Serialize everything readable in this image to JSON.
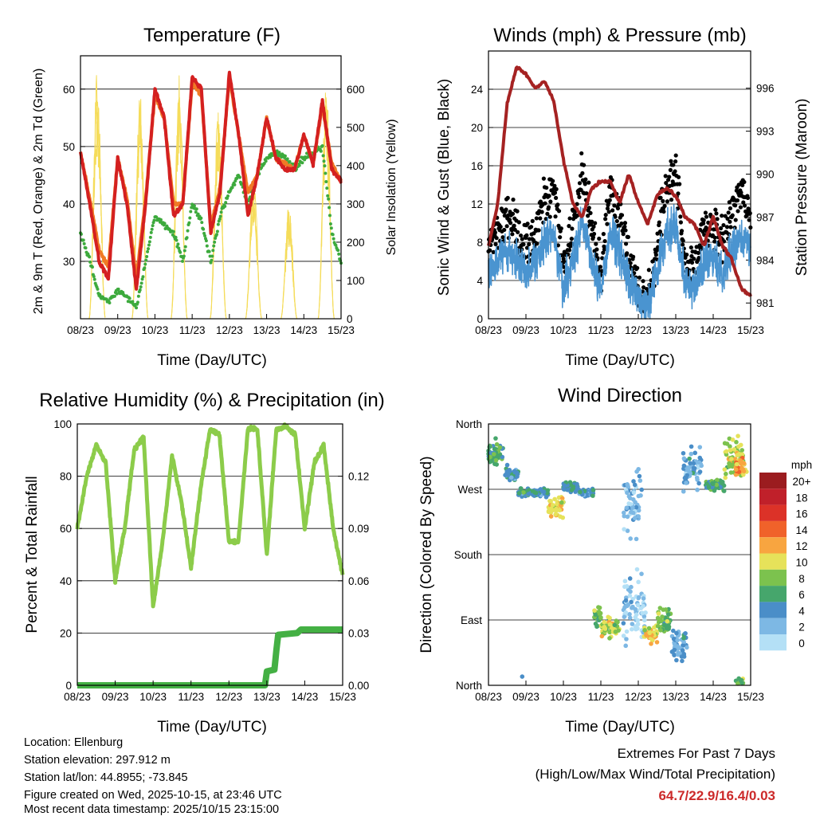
{
  "colors": {
    "red": "#d42020",
    "orange": "#f07a25",
    "green": "#3daa3d",
    "yellow": "#f5dc5a",
    "black": "#000000",
    "blue": "#4a94d0",
    "maroon": "#a52222",
    "rh": "#8ccc4a",
    "precip": "#44b044",
    "extremes": "#cc2a2a"
  },
  "chart_data": [
    {
      "type": "line",
      "title": "Temperature (F)",
      "xlabel": "Time (Day/UTC)",
      "ylabel": "2m & 9m T (Red, Orange) & 2m Td (Green)",
      "ylabel_right": "Solar Insolation (Yellow)",
      "x_ticks": [
        "08/23",
        "09/23",
        "10/23",
        "11/23",
        "12/23",
        "13/23",
        "14/23",
        "15/23"
      ],
      "ylim": [
        20,
        65.8
      ],
      "y_ticks": [
        30,
        40,
        50,
        60
      ],
      "ylim_right": [
        0,
        687
      ],
      "y_ticks_right": [
        0,
        100,
        200,
        300,
        400,
        500,
        600
      ],
      "x_step_days": 0.25,
      "series": [
        {
          "name": "2m T",
          "color": "red",
          "values": [
            49,
            40,
            30,
            27,
            48,
            40,
            25,
            40,
            60,
            55,
            38,
            40,
            62,
            60,
            35,
            42,
            63,
            52,
            38,
            45,
            55,
            48,
            46,
            46,
            52,
            47,
            58,
            46,
            44
          ]
        },
        {
          "name": "9m T",
          "color": "orange",
          "values": [
            49,
            41,
            32,
            29,
            48,
            41,
            27,
            41,
            59,
            55,
            40,
            40,
            61,
            59,
            36,
            43,
            62,
            52,
            42,
            45,
            55,
            48,
            47,
            46,
            52,
            47,
            57,
            47,
            44
          ]
        },
        {
          "name": "2m Td",
          "color": "green",
          "values": [
            35,
            30,
            24,
            23,
            25,
            24,
            22,
            30,
            38,
            36,
            35,
            30,
            40,
            37,
            30,
            38,
            42,
            45,
            40,
            45,
            48,
            49,
            48,
            46,
            48,
            49,
            50,
            35,
            30
          ]
        }
      ],
      "solar_peaks": [
        {
          "day": 0.45,
          "value": 650
        },
        {
          "day": 1.6,
          "value": 600
        },
        {
          "day": 2.65,
          "value": 640
        },
        {
          "day": 3.7,
          "value": 560
        },
        {
          "day": 4.65,
          "value": 380
        },
        {
          "day": 5.6,
          "value": 300
        },
        {
          "day": 6.6,
          "value": 620
        }
      ]
    },
    {
      "type": "scatter",
      "title": "Winds (mph) & Pressure (mb)",
      "xlabel": "Time (Day/UTC)",
      "ylabel": "Sonic Wind & Gust (Blue, Black)",
      "ylabel_right": "Station Pressure (Maroon)",
      "x_ticks": [
        "08/23",
        "09/23",
        "10/23",
        "11/23",
        "12/23",
        "13/23",
        "14/23",
        "15/23"
      ],
      "ylim": [
        0,
        28
      ],
      "y_ticks": [
        0,
        4,
        8,
        12,
        16,
        20,
        24
      ],
      "ylim_right": [
        979.9,
        998.6
      ],
      "y_ticks_right": [
        981,
        984,
        987,
        990,
        993,
        996
      ],
      "x_step_days": 0.25,
      "mean_wind": [
        5,
        6,
        7,
        6,
        5,
        6,
        8,
        9,
        3,
        6,
        10,
        6,
        3,
        9,
        7,
        4,
        2,
        1,
        5,
        9,
        10,
        4,
        3,
        6,
        6,
        5,
        7,
        9,
        7
      ],
      "pressure": [
        985,
        988,
        995,
        997.5,
        997,
        996,
        996.5,
        995,
        991,
        988,
        987,
        989,
        989.5,
        989.5,
        988,
        990,
        988,
        986.5,
        988.5,
        989,
        988.5,
        987,
        986.5,
        985,
        987,
        985,
        984,
        982,
        981.5
      ]
    },
    {
      "type": "line",
      "title": "Relative Humidity (%) & Precipitation (in)",
      "xlabel": "Time (Day/UTC)",
      "ylabel": "Percent & Total Rainfall",
      "x_ticks": [
        "08/23",
        "09/23",
        "10/23",
        "11/23",
        "12/23",
        "13/23",
        "14/23",
        "15/23"
      ],
      "ylim": [
        0,
        100
      ],
      "y_ticks": [
        0,
        20,
        40,
        60,
        80,
        100
      ],
      "ylim_right": [
        0,
        0.15
      ],
      "y_ticks_right": [
        "0.00",
        "0.03",
        "0.06",
        "0.09",
        "0.12"
      ],
      "x_step_days": 0.25,
      "rh": [
        60,
        80,
        92,
        85,
        40,
        60,
        90,
        95,
        30,
        55,
        88,
        70,
        45,
        75,
        98,
        96,
        55,
        55,
        98,
        98,
        50,
        98,
        99,
        96,
        60,
        85,
        92,
        60,
        42
      ],
      "precip": [
        [
          0,
          0
        ],
        [
          4.95,
          0
        ],
        [
          5.0,
          0.008
        ],
        [
          5.2,
          0.009
        ],
        [
          5.25,
          0.02
        ],
        [
          5.3,
          0.029
        ],
        [
          5.8,
          0.03
        ],
        [
          5.9,
          0.032
        ],
        [
          7,
          0.032
        ]
      ]
    },
    {
      "type": "scatter",
      "title": "Wind Direction",
      "xlabel": "Time (Day/UTC)",
      "ylabel": "Direction (Colored By Speed)",
      "x_ticks": [
        "08/23",
        "09/23",
        "10/23",
        "11/23",
        "12/23",
        "13/23",
        "14/23",
        "15/23"
      ],
      "y_ticks": [
        "North",
        "East",
        "South",
        "West",
        "North"
      ],
      "ylim": [
        0,
        360
      ],
      "legend": {
        "title": "mph",
        "labels": [
          "20+",
          "18",
          "16",
          "14",
          "12",
          "10",
          "8",
          "6",
          "4",
          "2",
          "0"
        ],
        "colors": [
          "#9b1c1f",
          "#c0202a",
          "#dc3228",
          "#f0622a",
          "#f8a540",
          "#e6e25a",
          "#7cc24e",
          "#46a66c",
          "#4a8ec8",
          "#7db8e4",
          "#b4e0f6"
        ],
        "placement": "right"
      },
      "clusters": [
        [
          0,
          0.4,
          320,
          25,
          6
        ],
        [
          0.4,
          0.8,
          290,
          15,
          4
        ],
        [
          0.8,
          1.6,
          265,
          8,
          5
        ],
        [
          1.6,
          2.0,
          245,
          20,
          10
        ],
        [
          2.0,
          2.4,
          275,
          10,
          5
        ],
        [
          2.4,
          2.8,
          265,
          8,
          4
        ],
        [
          2.8,
          3.0,
          95,
          25,
          7
        ],
        [
          3.0,
          3.5,
          80,
          18,
          9
        ],
        [
          3.6,
          4.2,
          110,
          70,
          1
        ],
        [
          3.6,
          4.1,
          250,
          70,
          2
        ],
        [
          4.15,
          4.5,
          70,
          15,
          10
        ],
        [
          4.5,
          4.9,
          90,
          25,
          7
        ],
        [
          4.9,
          5.3,
          55,
          30,
          3
        ],
        [
          5.2,
          5.7,
          300,
          45,
          3
        ],
        [
          5.8,
          6.3,
          275,
          10,
          6
        ],
        [
          6.3,
          6.8,
          315,
          35,
          9
        ],
        [
          6.6,
          6.9,
          300,
          15,
          12
        ]
      ]
    }
  ],
  "footer": {
    "location": "Location: Ellenburg",
    "elevation": "Station elevation: 297.912 m",
    "latlon": "Station lat/lon: 44.8955; -73.845",
    "created": "Figure created on Wed, 2025-10-15, at 23:46 UTC",
    "recent": "Most recent data timestamp: 2025/10/15 23:15:00"
  },
  "extremes": {
    "title": "Extremes For Past 7 Days",
    "subtitle": "(High/Low/Max Wind/Total Precipitation)",
    "values": "64.7/22.9/16.4/0.03"
  }
}
